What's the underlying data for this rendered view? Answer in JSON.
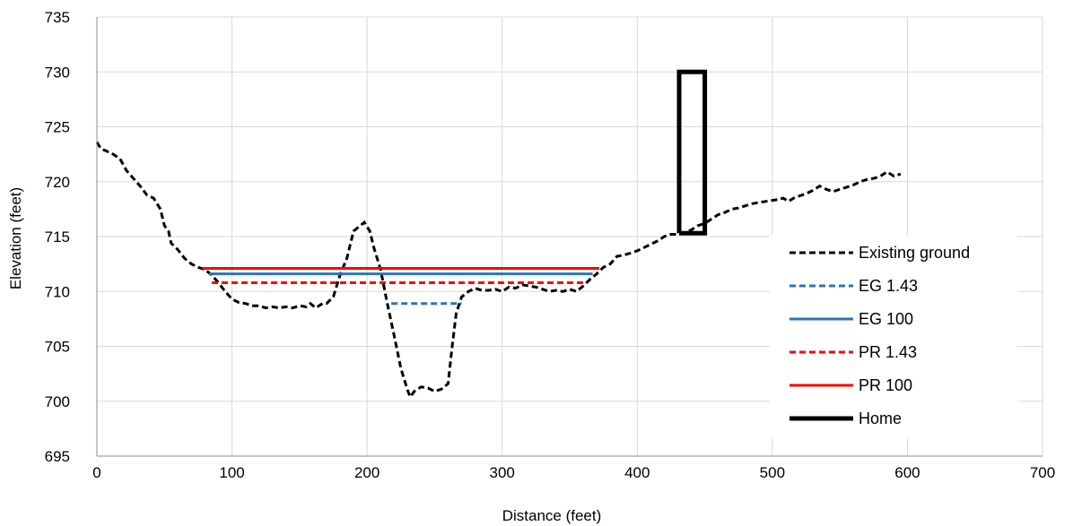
{
  "chart_data": {
    "type": "line",
    "title": "",
    "xlabel": "Distance (feet)",
    "ylabel": "Elevation (feet)",
    "xlim": [
      0,
      700
    ],
    "ylim": [
      695,
      735
    ],
    "x_ticks": [
      "0",
      "100",
      "200",
      "300",
      "400",
      "500",
      "600",
      "700"
    ],
    "y_ticks": [
      "695",
      "700",
      "705",
      "710",
      "715",
      "720",
      "725",
      "730",
      "735"
    ],
    "grid": true,
    "legend_position": "bottom-right",
    "series": [
      {
        "name": "Existing ground",
        "color": "#000000",
        "style": "dashed",
        "points": [
          [
            0,
            723.6
          ],
          [
            3,
            723
          ],
          [
            7,
            722.8
          ],
          [
            12,
            722.5
          ],
          [
            17,
            722.1
          ],
          [
            22,
            721
          ],
          [
            27,
            720.3
          ],
          [
            32,
            719.6
          ],
          [
            37,
            718.8
          ],
          [
            42,
            718.5
          ],
          [
            47,
            717.5
          ],
          [
            50,
            716
          ],
          [
            53,
            715.5
          ],
          [
            55,
            714.4
          ],
          [
            60,
            713.8
          ],
          [
            65,
            713
          ],
          [
            70,
            712.5
          ],
          [
            75,
            712.2
          ],
          [
            80,
            712
          ],
          [
            85,
            711.5
          ],
          [
            90,
            710.8
          ],
          [
            95,
            710
          ],
          [
            100,
            709.3
          ],
          [
            105,
            709
          ],
          [
            110,
            708.9
          ],
          [
            115,
            708.7
          ],
          [
            120,
            708.7
          ],
          [
            125,
            708.5
          ],
          [
            130,
            708.6
          ],
          [
            135,
            708.5
          ],
          [
            140,
            708.6
          ],
          [
            145,
            708.5
          ],
          [
            150,
            708.7
          ],
          [
            155,
            708.6
          ],
          [
            158,
            708.9
          ],
          [
            162,
            708.5
          ],
          [
            167,
            708.9
          ],
          [
            170,
            708.9
          ],
          [
            175,
            709.5
          ],
          [
            180,
            711.5
          ],
          [
            185,
            713
          ],
          [
            190,
            715.5
          ],
          [
            195,
            716
          ],
          [
            198,
            716.3
          ],
          [
            202,
            715.5
          ],
          [
            205,
            714
          ],
          [
            210,
            712
          ],
          [
            215,
            708.9
          ],
          [
            220,
            706
          ],
          [
            225,
            703
          ],
          [
            230,
            701
          ],
          [
            232,
            700.4
          ],
          [
            235,
            700.9
          ],
          [
            240,
            701.3
          ],
          [
            245,
            701.2
          ],
          [
            250,
            700.9
          ],
          [
            255,
            701.1
          ],
          [
            260,
            701.6
          ],
          [
            263,
            705
          ],
          [
            266,
            708
          ],
          [
            270,
            709.5
          ],
          [
            275,
            710
          ],
          [
            280,
            710.3
          ],
          [
            285,
            710.1
          ],
          [
            290,
            710.1
          ],
          [
            295,
            710.2
          ],
          [
            300,
            710
          ],
          [
            305,
            710.4
          ],
          [
            310,
            710.3
          ],
          [
            315,
            710.6
          ],
          [
            320,
            710.5
          ],
          [
            325,
            710.4
          ],
          [
            330,
            710.2
          ],
          [
            335,
            710
          ],
          [
            340,
            710.1
          ],
          [
            345,
            710
          ],
          [
            350,
            710.2
          ],
          [
            355,
            710
          ],
          [
            360,
            710.5
          ],
          [
            365,
            711.1
          ],
          [
            370,
            711.6
          ],
          [
            375,
            712.2
          ],
          [
            380,
            712.5
          ],
          [
            385,
            713.2
          ],
          [
            390,
            713.3
          ],
          [
            395,
            713.5
          ],
          [
            400,
            713.7
          ],
          [
            405,
            714
          ],
          [
            410,
            714.3
          ],
          [
            415,
            714.6
          ],
          [
            420,
            715
          ],
          [
            425,
            715.2
          ],
          [
            430,
            715.2
          ],
          [
            435,
            715.3
          ],
          [
            440,
            715.6
          ],
          [
            445,
            716
          ],
          [
            450,
            716.2
          ],
          [
            455,
            716.6
          ],
          [
            460,
            717
          ],
          [
            465,
            717.2
          ],
          [
            470,
            717.5
          ],
          [
            475,
            717.6
          ],
          [
            480,
            717.8
          ],
          [
            485,
            718
          ],
          [
            490,
            718.1
          ],
          [
            495,
            718.2
          ],
          [
            500,
            718.3
          ],
          [
            505,
            718.4
          ],
          [
            508,
            718.5
          ],
          [
            512,
            718.2
          ],
          [
            517,
            718.6
          ],
          [
            520,
            718.7
          ],
          [
            525,
            718.9
          ],
          [
            530,
            719.2
          ],
          [
            535,
            719.6
          ],
          [
            540,
            719.3
          ],
          [
            545,
            719.1
          ],
          [
            550,
            719.3
          ],
          [
            555,
            719.5
          ],
          [
            560,
            719.7
          ],
          [
            565,
            720
          ],
          [
            570,
            720.2
          ],
          [
            575,
            720.3
          ],
          [
            580,
            720.5
          ],
          [
            585,
            720.9
          ],
          [
            590,
            720.5
          ],
          [
            595,
            720.7
          ]
        ]
      },
      {
        "name": "EG 1.43",
        "color": "#2E75B6",
        "style": "dashed",
        "points": [
          [
            218,
            708.9
          ],
          [
            270,
            708.9
          ]
        ]
      },
      {
        "name": "EG 100",
        "color": "#2E75B6",
        "style": "solid",
        "points": [
          [
            83,
            711.6
          ],
          [
            367,
            711.6
          ]
        ]
      },
      {
        "name": "PR 1.43",
        "color": "#FF0000",
        "style": "dashed",
        "points": [
          [
            85,
            710.8
          ],
          [
            362,
            710.8
          ]
        ]
      },
      {
        "name": "PR 100",
        "color": "#FF0000",
        "style": "solid",
        "points": [
          [
            78,
            712.1
          ],
          [
            372,
            712.1
          ]
        ]
      },
      {
        "name": "Home",
        "color": "#000000",
        "style": "thick",
        "points": [
          [
            431,
            715.3
          ],
          [
            431,
            730
          ],
          [
            450,
            730
          ],
          [
            450,
            715.3
          ],
          [
            431,
            715.3
          ]
        ]
      }
    ]
  }
}
